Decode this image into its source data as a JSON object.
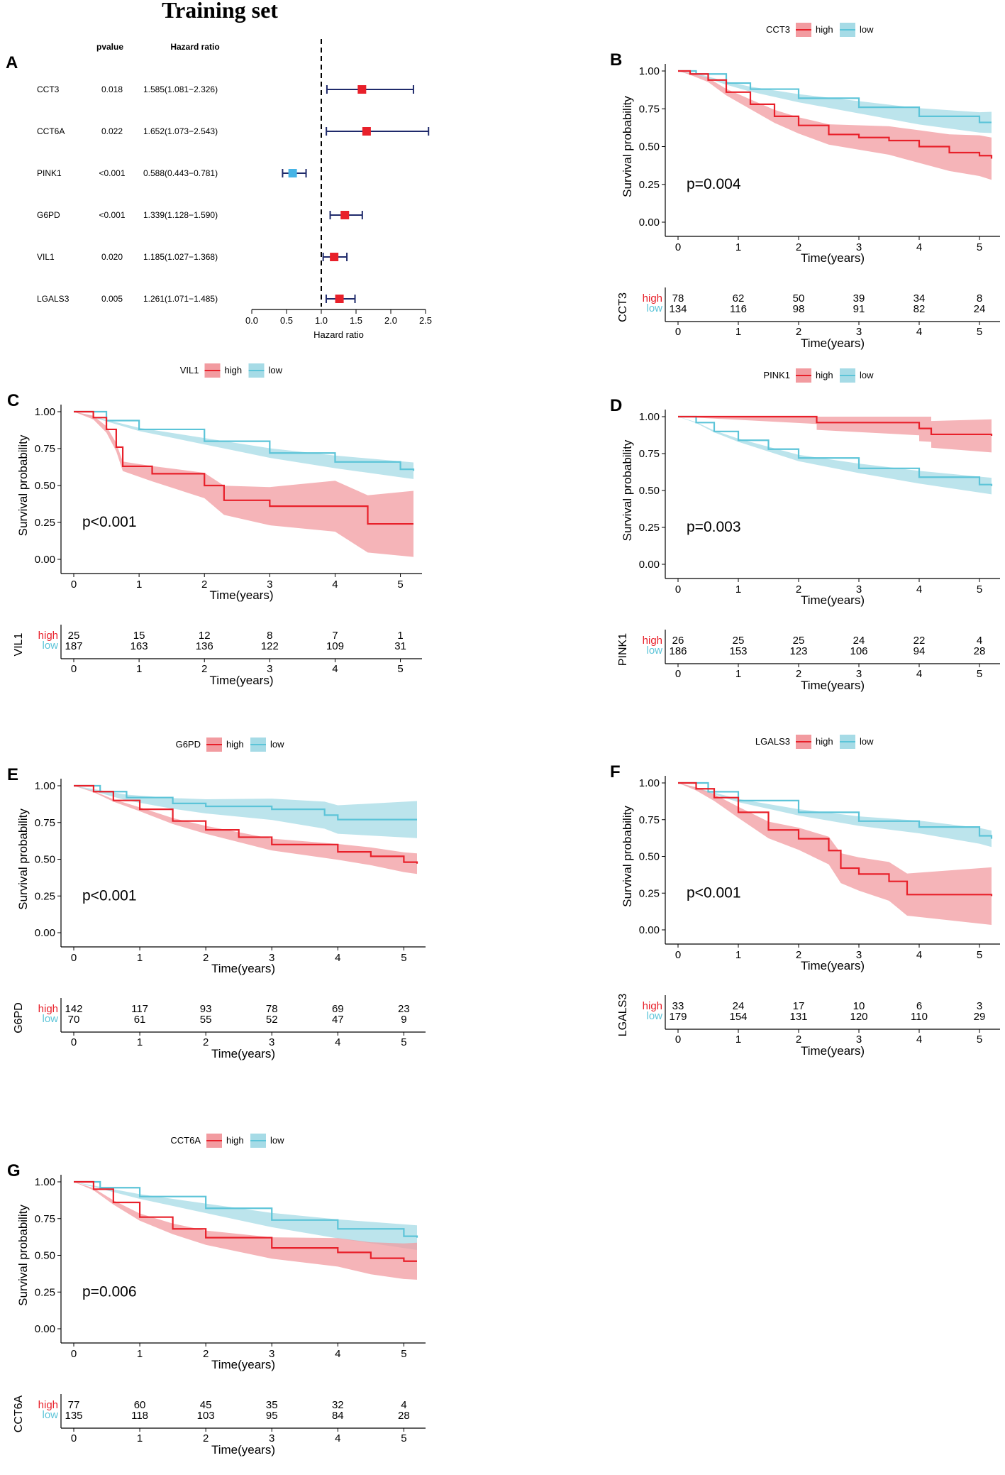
{
  "figure_title": "Training set",
  "colors": {
    "high": "#e8202a",
    "low": "#5cc4d8",
    "high_band": "#f29ba0",
    "low_band": "#a6dbe6",
    "forest_square_red": "#e8202a",
    "forest_square_blue": "#46b4e6",
    "ci_line": "#1f2a6b"
  },
  "chart_data": [
    {
      "type": "forest",
      "panel": "A",
      "header_pvalue": "pvalue",
      "header_hr": "Hazard ratio",
      "xlabel": "Hazard ratio",
      "xlim": [
        0,
        2.5
      ],
      "xticks": [
        "0.0",
        "0.5",
        "1.0",
        "1.5",
        "2.0",
        "2.5"
      ],
      "reference_line": 1.0,
      "rows": [
        {
          "gene": "CCT3",
          "pvalue": "0.018",
          "hr_text": "1.585(1.081−2.326)",
          "hr": 1.585,
          "lo": 1.081,
          "hi": 2.326,
          "color": "red"
        },
        {
          "gene": "CCT6A",
          "pvalue": "0.022",
          "hr_text": "1.652(1.073−2.543)",
          "hr": 1.652,
          "lo": 1.073,
          "hi": 2.543,
          "color": "red"
        },
        {
          "gene": "PINK1",
          "pvalue": "<0.001",
          "hr_text": "0.588(0.443−0.781)",
          "hr": 0.588,
          "lo": 0.443,
          "hi": 0.781,
          "color": "blue"
        },
        {
          "gene": "G6PD",
          "pvalue": "<0.001",
          "hr_text": "1.339(1.128−1.590)",
          "hr": 1.339,
          "lo": 1.128,
          "hi": 1.59,
          "color": "red"
        },
        {
          "gene": "VIL1",
          "pvalue": "0.020",
          "hr_text": "1.185(1.027−1.368)",
          "hr": 1.185,
          "lo": 1.027,
          "hi": 1.368,
          "color": "red"
        },
        {
          "gene": "LGALS3",
          "pvalue": "0.005",
          "hr_text": "1.261(1.071−1.485)",
          "hr": 1.261,
          "lo": 1.071,
          "hi": 1.485,
          "color": "red"
        }
      ]
    },
    {
      "type": "km",
      "panel": "B",
      "gene": "CCT3",
      "pval": "p=0.004",
      "legend": [
        "high",
        "low"
      ],
      "ylabel": "Survival probability",
      "xlabel": "Time(years)",
      "ylim": [
        0,
        1
      ],
      "yticks": [
        "0.00",
        "0.25",
        "0.50",
        "0.75",
        "1.00"
      ],
      "xticks": [
        "0",
        "1",
        "2",
        "3",
        "4",
        "5"
      ],
      "high": {
        "curve": [
          [
            0,
            1
          ],
          [
            0.2,
            0.98
          ],
          [
            0.5,
            0.94
          ],
          [
            0.8,
            0.86
          ],
          [
            1.2,
            0.78
          ],
          [
            1.6,
            0.7
          ],
          [
            2,
            0.64
          ],
          [
            2.5,
            0.58
          ],
          [
            3,
            0.56
          ],
          [
            3.5,
            0.54
          ],
          [
            4,
            0.5
          ],
          [
            4.5,
            0.46
          ],
          [
            5,
            0.44
          ],
          [
            5.2,
            0.42
          ]
        ],
        "band": 0.1
      },
      "low": {
        "curve": [
          [
            0,
            1
          ],
          [
            0.3,
            0.98
          ],
          [
            0.8,
            0.92
          ],
          [
            1.2,
            0.88
          ],
          [
            2,
            0.82
          ],
          [
            3,
            0.76
          ],
          [
            4,
            0.7
          ],
          [
            5,
            0.66
          ],
          [
            5.2,
            0.66
          ]
        ],
        "band": 0.05
      },
      "risk_table": {
        "high": [
          "78",
          "62",
          "50",
          "39",
          "34",
          "8"
        ],
        "low": [
          "134",
          "116",
          "98",
          "91",
          "82",
          "24"
        ]
      }
    },
    {
      "type": "km",
      "panel": "C",
      "gene": "VIL1",
      "pval": "p<0.001",
      "legend": [
        "high",
        "low"
      ],
      "ylabel": "Survival probability",
      "xlabel": "Time(years)",
      "ylim": [
        0,
        1
      ],
      "yticks": [
        "0.00",
        "0.25",
        "0.50",
        "0.75",
        "1.00"
      ],
      "xticks": [
        "0",
        "1",
        "2",
        "3",
        "4",
        "5"
      ],
      "high": {
        "curve": [
          [
            0,
            1
          ],
          [
            0.3,
            0.96
          ],
          [
            0.5,
            0.88
          ],
          [
            0.65,
            0.76
          ],
          [
            0.75,
            0.63
          ],
          [
            1.2,
            0.58
          ],
          [
            2,
            0.5
          ],
          [
            2.3,
            0.4
          ],
          [
            3,
            0.36
          ],
          [
            4,
            0.36
          ],
          [
            4.5,
            0.24
          ],
          [
            5.2,
            0.24
          ]
        ],
        "band": 0.16
      },
      "low": {
        "curve": [
          [
            0,
            1
          ],
          [
            0.5,
            0.94
          ],
          [
            1,
            0.88
          ],
          [
            2,
            0.8
          ],
          [
            3,
            0.72
          ],
          [
            4,
            0.66
          ],
          [
            5,
            0.61
          ],
          [
            5.2,
            0.6
          ]
        ],
        "band": 0.04
      },
      "risk_table": {
        "high": [
          "25",
          "15",
          "12",
          "8",
          "7",
          "1"
        ],
        "low": [
          "187",
          "163",
          "136",
          "122",
          "109",
          "31"
        ]
      }
    },
    {
      "type": "km",
      "panel": "D",
      "gene": "PINK1",
      "pval": "p=0.003",
      "legend": [
        "high",
        "low"
      ],
      "ylabel": "Survival probability",
      "xlabel": "Time(years)",
      "ylim": [
        0,
        1
      ],
      "yticks": [
        "0.00",
        "0.25",
        "0.50",
        "0.75",
        "1.00"
      ],
      "xticks": [
        "0",
        "1",
        "2",
        "3",
        "4",
        "5"
      ],
      "high": {
        "curve": [
          [
            0,
            1
          ],
          [
            2.3,
            1
          ],
          [
            2.3,
            0.96
          ],
          [
            4,
            0.96
          ],
          [
            4,
            0.92
          ],
          [
            4.2,
            0.92
          ],
          [
            4.2,
            0.88
          ],
          [
            5.2,
            0.87
          ]
        ],
        "band": 0.08
      },
      "low": {
        "curve": [
          [
            0,
            1
          ],
          [
            0.3,
            0.96
          ],
          [
            0.6,
            0.9
          ],
          [
            1,
            0.84
          ],
          [
            1.5,
            0.78
          ],
          [
            2,
            0.72
          ],
          [
            3,
            0.65
          ],
          [
            4,
            0.59
          ],
          [
            5,
            0.54
          ],
          [
            5.2,
            0.53
          ]
        ],
        "band": 0.04
      },
      "risk_table": {
        "high": [
          "26",
          "25",
          "25",
          "24",
          "22",
          "4"
        ],
        "low": [
          "186",
          "153",
          "123",
          "106",
          "94",
          "28"
        ]
      }
    },
    {
      "type": "km",
      "panel": "E",
      "gene": "G6PD",
      "pval": "p<0.001",
      "legend": [
        "high",
        "low"
      ],
      "ylabel": "Survival probability",
      "xlabel": "Time(years)",
      "ylim": [
        0,
        1
      ],
      "yticks": [
        "0.00",
        "0.25",
        "0.50",
        "0.75",
        "1.00"
      ],
      "xticks": [
        "0",
        "1",
        "2",
        "3",
        "4",
        "5"
      ],
      "high": {
        "curve": [
          [
            0,
            1
          ],
          [
            0.3,
            0.96
          ],
          [
            0.6,
            0.9
          ],
          [
            1,
            0.84
          ],
          [
            1.5,
            0.76
          ],
          [
            2,
            0.7
          ],
          [
            2.5,
            0.65
          ],
          [
            3,
            0.6
          ],
          [
            4,
            0.55
          ],
          [
            4.5,
            0.52
          ],
          [
            5,
            0.48
          ],
          [
            5.2,
            0.47
          ]
        ],
        "band": 0.05
      },
      "low": {
        "curve": [
          [
            0,
            1
          ],
          [
            0.4,
            0.96
          ],
          [
            0.8,
            0.92
          ],
          [
            1.5,
            0.88
          ],
          [
            2,
            0.86
          ],
          [
            3,
            0.84
          ],
          [
            3.8,
            0.8
          ],
          [
            4,
            0.77
          ],
          [
            5.2,
            0.77
          ]
        ],
        "band": 0.09
      },
      "risk_table": {
        "high": [
          "142",
          "117",
          "93",
          "78",
          "69",
          "23"
        ],
        "low": [
          "70",
          "61",
          "55",
          "52",
          "47",
          "9"
        ]
      }
    },
    {
      "type": "km",
      "panel": "F",
      "gene": "LGALS3",
      "pval": "p<0.001",
      "legend": [
        "high",
        "low"
      ],
      "ylabel": "Survival probability",
      "xlabel": "Time(years)",
      "ylim": [
        0,
        1
      ],
      "yticks": [
        "0.00",
        "0.25",
        "0.50",
        "0.75",
        "1.00"
      ],
      "xticks": [
        "0",
        "1",
        "2",
        "3",
        "4",
        "5"
      ],
      "high": {
        "curve": [
          [
            0,
            1
          ],
          [
            0.3,
            0.96
          ],
          [
            0.6,
            0.9
          ],
          [
            1,
            0.8
          ],
          [
            1.5,
            0.68
          ],
          [
            2,
            0.62
          ],
          [
            2.5,
            0.54
          ],
          [
            2.7,
            0.42
          ],
          [
            3,
            0.38
          ],
          [
            3.5,
            0.33
          ],
          [
            3.8,
            0.24
          ],
          [
            5.2,
            0.23
          ]
        ],
        "band": 0.14
      },
      "low": {
        "curve": [
          [
            0,
            1
          ],
          [
            0.5,
            0.94
          ],
          [
            1,
            0.88
          ],
          [
            2,
            0.8
          ],
          [
            3,
            0.74
          ],
          [
            4,
            0.7
          ],
          [
            5,
            0.64
          ],
          [
            5.2,
            0.62
          ]
        ],
        "band": 0.04
      },
      "risk_table": {
        "high": [
          "33",
          "24",
          "17",
          "10",
          "6",
          "3"
        ],
        "low": [
          "179",
          "154",
          "131",
          "120",
          "110",
          "29"
        ]
      }
    },
    {
      "type": "km",
      "panel": "G",
      "gene": "CCT6A",
      "pval": "p=0.006",
      "legend": [
        "high",
        "low"
      ],
      "ylabel": "Survival probability",
      "xlabel": "Time(years)",
      "ylim": [
        0,
        1
      ],
      "yticks": [
        "0.00",
        "0.25",
        "0.50",
        "0.75",
        "1.00"
      ],
      "xticks": [
        "0",
        "1",
        "2",
        "3",
        "4",
        "5"
      ],
      "high": {
        "curve": [
          [
            0,
            1
          ],
          [
            0.3,
            0.95
          ],
          [
            0.6,
            0.86
          ],
          [
            1,
            0.76
          ],
          [
            1.5,
            0.68
          ],
          [
            2,
            0.62
          ],
          [
            3,
            0.55
          ],
          [
            4,
            0.52
          ],
          [
            4.5,
            0.48
          ],
          [
            5,
            0.46
          ],
          [
            5.2,
            0.46
          ]
        ],
        "band": 0.09
      },
      "low": {
        "curve": [
          [
            0,
            1
          ],
          [
            0.4,
            0.96
          ],
          [
            1,
            0.9
          ],
          [
            2,
            0.82
          ],
          [
            3,
            0.74
          ],
          [
            4,
            0.68
          ],
          [
            5,
            0.63
          ],
          [
            5.2,
            0.62
          ]
        ],
        "band": 0.06
      },
      "risk_table": {
        "high": [
          "77",
          "60",
          "45",
          "35",
          "32",
          "4"
        ],
        "low": [
          "135",
          "118",
          "103",
          "95",
          "84",
          "28"
        ]
      }
    }
  ]
}
